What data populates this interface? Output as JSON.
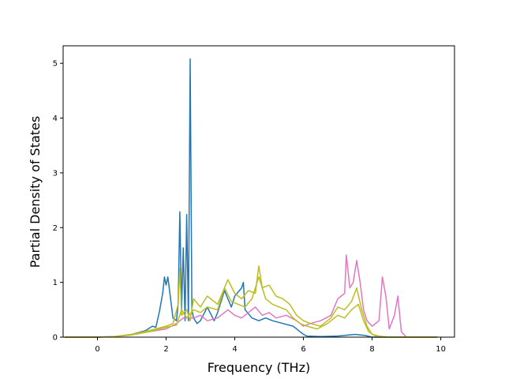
{
  "chart_data": {
    "type": "line",
    "title": "",
    "xlabel": "Frequency (THz)",
    "ylabel": "Partial Density of States",
    "xlim": [
      -1.0,
      10.4
    ],
    "ylim": [
      0,
      5.32
    ],
    "xticks": [
      0,
      2,
      4,
      6,
      8,
      10
    ],
    "yticks": [
      0,
      1,
      2,
      3,
      4,
      5
    ],
    "grid": false,
    "legend": "none",
    "series": [
      {
        "color": "#1f77b4",
        "points": [
          [
            -0.95,
            0
          ],
          [
            0,
            0
          ],
          [
            0.5,
            0.01
          ],
          [
            1,
            0.05
          ],
          [
            1.4,
            0.12
          ],
          [
            1.6,
            0.2
          ],
          [
            1.7,
            0.18
          ],
          [
            1.8,
            0.45
          ],
          [
            1.9,
            0.8
          ],
          [
            1.95,
            1.1
          ],
          [
            2.0,
            0.95
          ],
          [
            2.05,
            1.1
          ],
          [
            2.1,
            0.85
          ],
          [
            2.2,
            0.35
          ],
          [
            2.3,
            0.3
          ],
          [
            2.35,
            0.6
          ],
          [
            2.4,
            2.29
          ],
          [
            2.45,
            0.5
          ],
          [
            2.5,
            1.63
          ],
          [
            2.55,
            0.3
          ],
          [
            2.6,
            2.24
          ],
          [
            2.65,
            0.3
          ],
          [
            2.7,
            5.08
          ],
          [
            2.75,
            0.5
          ],
          [
            2.8,
            0.35
          ],
          [
            2.9,
            0.25
          ],
          [
            3.0,
            0.3
          ],
          [
            3.2,
            0.55
          ],
          [
            3.4,
            0.3
          ],
          [
            3.5,
            0.45
          ],
          [
            3.7,
            0.85
          ],
          [
            3.9,
            0.55
          ],
          [
            4.0,
            0.75
          ],
          [
            4.2,
            0.9
          ],
          [
            4.25,
            1.0
          ],
          [
            4.3,
            0.5
          ],
          [
            4.5,
            0.35
          ],
          [
            4.7,
            0.3
          ],
          [
            4.9,
            0.35
          ],
          [
            5.1,
            0.3
          ],
          [
            5.4,
            0.25
          ],
          [
            5.7,
            0.2
          ],
          [
            5.9,
            0.1
          ],
          [
            6.0,
            0.05
          ],
          [
            6.1,
            0.02
          ],
          [
            6.5,
            0.01
          ],
          [
            7.0,
            0.02
          ],
          [
            7.5,
            0.05
          ],
          [
            7.8,
            0.03
          ],
          [
            8.0,
            0
          ],
          [
            9.9,
            0
          ]
        ]
      },
      {
        "color": "#e377c2",
        "points": [
          [
            -0.95,
            0
          ],
          [
            0,
            0
          ],
          [
            0.5,
            0.01
          ],
          [
            1,
            0.04
          ],
          [
            1.5,
            0.1
          ],
          [
            2,
            0.15
          ],
          [
            2.3,
            0.25
          ],
          [
            2.5,
            0.35
          ],
          [
            2.8,
            0.35
          ],
          [
            3.0,
            0.4
          ],
          [
            3.2,
            0.3
          ],
          [
            3.5,
            0.35
          ],
          [
            3.8,
            0.5
          ],
          [
            4.0,
            0.4
          ],
          [
            4.2,
            0.35
          ],
          [
            4.4,
            0.45
          ],
          [
            4.6,
            0.55
          ],
          [
            4.8,
            0.4
          ],
          [
            5.0,
            0.45
          ],
          [
            5.2,
            0.35
          ],
          [
            5.5,
            0.4
          ],
          [
            5.8,
            0.3
          ],
          [
            6.0,
            0.2
          ],
          [
            6.2,
            0.25
          ],
          [
            6.5,
            0.3
          ],
          [
            6.8,
            0.4
          ],
          [
            7.0,
            0.7
          ],
          [
            7.2,
            0.8
          ],
          [
            7.25,
            1.5
          ],
          [
            7.35,
            0.9
          ],
          [
            7.45,
            1.0
          ],
          [
            7.55,
            1.4
          ],
          [
            7.65,
            1.0
          ],
          [
            7.75,
            0.5
          ],
          [
            7.85,
            0.3
          ],
          [
            8.0,
            0.2
          ],
          [
            8.2,
            0.3
          ],
          [
            8.3,
            1.1
          ],
          [
            8.4,
            0.75
          ],
          [
            8.5,
            0.15
          ],
          [
            8.65,
            0.4
          ],
          [
            8.75,
            0.75
          ],
          [
            8.85,
            0.1
          ],
          [
            9.0,
            0
          ],
          [
            9.9,
            0
          ]
        ]
      },
      {
        "color": "#bcbd22",
        "points": [
          [
            -0.95,
            0
          ],
          [
            0,
            0
          ],
          [
            0.5,
            0.01
          ],
          [
            1,
            0.05
          ],
          [
            1.5,
            0.12
          ],
          [
            2,
            0.2
          ],
          [
            2.2,
            0.25
          ],
          [
            2.35,
            0.6
          ],
          [
            2.4,
            1.25
          ],
          [
            2.45,
            0.4
          ],
          [
            2.6,
            0.5
          ],
          [
            2.7,
            0.3
          ],
          [
            2.8,
            0.7
          ],
          [
            3.0,
            0.55
          ],
          [
            3.2,
            0.75
          ],
          [
            3.5,
            0.6
          ],
          [
            3.8,
            1.05
          ],
          [
            4.0,
            0.8
          ],
          [
            4.2,
            0.7
          ],
          [
            4.4,
            0.85
          ],
          [
            4.6,
            0.8
          ],
          [
            4.7,
            1.3
          ],
          [
            4.8,
            0.9
          ],
          [
            5.0,
            0.95
          ],
          [
            5.2,
            0.75
          ],
          [
            5.4,
            0.7
          ],
          [
            5.6,
            0.6
          ],
          [
            5.8,
            0.4
          ],
          [
            6.0,
            0.3
          ],
          [
            6.2,
            0.25
          ],
          [
            6.5,
            0.2
          ],
          [
            6.8,
            0.35
          ],
          [
            7.0,
            0.55
          ],
          [
            7.2,
            0.5
          ],
          [
            7.4,
            0.65
          ],
          [
            7.55,
            0.9
          ],
          [
            7.7,
            0.5
          ],
          [
            7.85,
            0.2
          ],
          [
            8.0,
            0.05
          ],
          [
            8.2,
            0.02
          ],
          [
            8.5,
            0
          ],
          [
            9.9,
            0
          ]
        ]
      },
      {
        "color": "#bcbd22",
        "points": [
          [
            -0.95,
            0
          ],
          [
            0,
            0
          ],
          [
            0.5,
            0.01
          ],
          [
            1,
            0.04
          ],
          [
            1.5,
            0.1
          ],
          [
            2,
            0.18
          ],
          [
            2.3,
            0.22
          ],
          [
            2.45,
            0.5
          ],
          [
            2.6,
            0.35
          ],
          [
            2.8,
            0.5
          ],
          [
            3.0,
            0.45
          ],
          [
            3.2,
            0.55
          ],
          [
            3.5,
            0.5
          ],
          [
            3.7,
            0.9
          ],
          [
            3.9,
            0.65
          ],
          [
            4.1,
            0.6
          ],
          [
            4.3,
            0.55
          ],
          [
            4.5,
            0.7
          ],
          [
            4.7,
            1.1
          ],
          [
            4.9,
            0.7
          ],
          [
            5.1,
            0.6
          ],
          [
            5.3,
            0.55
          ],
          [
            5.5,
            0.5
          ],
          [
            5.7,
            0.35
          ],
          [
            5.9,
            0.25
          ],
          [
            6.1,
            0.2
          ],
          [
            6.4,
            0.15
          ],
          [
            6.7,
            0.25
          ],
          [
            7.0,
            0.4
          ],
          [
            7.2,
            0.35
          ],
          [
            7.4,
            0.5
          ],
          [
            7.6,
            0.6
          ],
          [
            7.75,
            0.3
          ],
          [
            7.9,
            0.1
          ],
          [
            8.1,
            0.02
          ],
          [
            8.5,
            0
          ],
          [
            9.9,
            0
          ]
        ]
      }
    ]
  }
}
